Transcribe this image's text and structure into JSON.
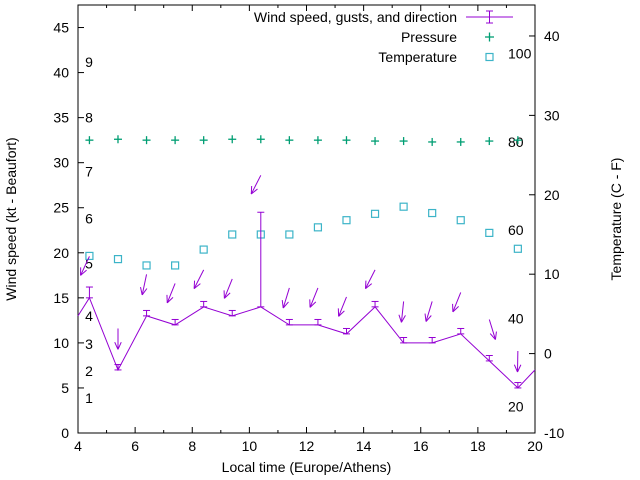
{
  "chart_data": {
    "type": "line",
    "title": "",
    "xlabel": "Local time (Europe/Athens)",
    "ylabel_left": "Wind speed (kt - Beaufort)",
    "ylabel_right": "Temperature (C - F)",
    "x_range": [
      4,
      20
    ],
    "x_major_ticks": [
      4,
      6,
      8,
      10,
      12,
      14,
      16,
      18,
      20
    ],
    "x_minor_ticks": [
      5,
      7,
      9,
      11,
      13,
      15,
      17,
      19
    ],
    "y_left_range": [
      0,
      47.5
    ],
    "y_left_ticks": [
      0,
      5,
      10,
      15,
      20,
      25,
      30,
      35,
      40,
      45
    ],
    "y_right_range": [
      -10,
      43.9
    ],
    "y_right_ticks": [
      -10,
      0,
      10,
      20,
      30,
      40
    ],
    "grid": false,
    "legend_position": "top-right-inside",
    "legend": [
      {
        "label": "Wind speed, gusts, and direction",
        "series": "wind"
      },
      {
        "label": "Pressure",
        "series": "pressure"
      },
      {
        "label": "Temperature",
        "series": "temperature"
      }
    ],
    "colors": {
      "wind": "#9400d3",
      "pressure": "#009e73",
      "temperature": "#3cb4c8",
      "axis": "#000000",
      "text": "#000000"
    },
    "beaufort_scale_labels": [
      {
        "text": "1",
        "kt": 3.9
      },
      {
        "text": "2",
        "kt": 6.9
      },
      {
        "text": "3",
        "kt": 9.9
      },
      {
        "text": "4",
        "kt": 13.0
      },
      {
        "text": "5",
        "kt": 18.8
      },
      {
        "text": "6",
        "kt": 23.8
      },
      {
        "text": "7",
        "kt": 29.0
      },
      {
        "text": "8",
        "kt": 35.0
      },
      {
        "text": "9",
        "kt": 41.2
      }
    ],
    "fahrenheit_scale_labels": [
      {
        "text": "20",
        "f": 20
      },
      {
        "text": "40",
        "f": 40
      },
      {
        "text": "60",
        "f": 60
      },
      {
        "text": "80",
        "f": 80
      },
      {
        "text": "100",
        "f": 100
      }
    ],
    "series": {
      "wind": {
        "x": [
          4.0,
          4.4,
          5.4,
          6.4,
          7.4,
          8.4,
          9.4,
          10.4,
          11.4,
          12.4,
          13.4,
          14.4,
          15.4,
          16.4,
          17.4,
          18.4,
          19.4,
          20.0
        ],
        "speed_kt": [
          13,
          15,
          7,
          13,
          12,
          14,
          13,
          14,
          12,
          12,
          11,
          14,
          10,
          10,
          11,
          8,
          5,
          7
        ],
        "gust_kt": [
          null,
          16.2,
          7.6,
          13.6,
          12.6,
          14.6,
          13.6,
          24.5,
          12.6,
          12.6,
          11.6,
          14.6,
          10.6,
          10.6,
          11.6,
          8.6,
          5.6,
          null
        ],
        "direction_arrows": [
          {
            "x": 4.4,
            "kt": 19.6,
            "dir": 205
          },
          {
            "x": 5.4,
            "kt": 11.6,
            "dir": 180
          },
          {
            "x": 6.4,
            "kt": 17.6,
            "dir": 192
          },
          {
            "x": 7.4,
            "kt": 16.6,
            "dir": 202
          },
          {
            "x": 8.4,
            "kt": 18.1,
            "dir": 207
          },
          {
            "x": 9.4,
            "kt": 17.1,
            "dir": 202
          },
          {
            "x": 10.4,
            "kt": 28.6,
            "dir": 207
          },
          {
            "x": 11.4,
            "kt": 16.1,
            "dir": 197
          },
          {
            "x": 12.4,
            "kt": 16.1,
            "dir": 202
          },
          {
            "x": 13.4,
            "kt": 15.1,
            "dir": 202
          },
          {
            "x": 14.4,
            "kt": 18.1,
            "dir": 207
          },
          {
            "x": 15.4,
            "kt": 14.6,
            "dir": 186
          },
          {
            "x": 16.4,
            "kt": 14.6,
            "dir": 197
          },
          {
            "x": 17.4,
            "kt": 15.6,
            "dir": 202
          },
          {
            "x": 18.4,
            "kt": 12.6,
            "dir": 163
          },
          {
            "x": 19.4,
            "kt": 9.1,
            "dir": 181
          }
        ]
      },
      "pressure": {
        "x": [
          4.4,
          5.4,
          6.4,
          7.4,
          8.4,
          9.4,
          10.4,
          11.4,
          12.4,
          13.4,
          14.4,
          15.4,
          16.4,
          17.4,
          18.4,
          19.4
        ],
        "level_kt_axis": [
          32.5,
          32.6,
          32.5,
          32.5,
          32.5,
          32.6,
          32.6,
          32.5,
          32.5,
          32.5,
          32.4,
          32.4,
          32.3,
          32.3,
          32.4,
          32.5
        ]
      },
      "temperature": {
        "x": [
          4.4,
          5.4,
          6.4,
          7.4,
          8.4,
          9.4,
          10.4,
          11.4,
          12.4,
          13.4,
          14.4,
          15.4,
          16.4,
          17.4,
          18.4,
          19.4
        ],
        "c": [
          12.3,
          11.9,
          11.1,
          11.1,
          13.1,
          15.0,
          15.0,
          15.0,
          15.9,
          16.8,
          17.6,
          18.5,
          17.7,
          16.8,
          15.2,
          13.2
        ]
      }
    }
  }
}
